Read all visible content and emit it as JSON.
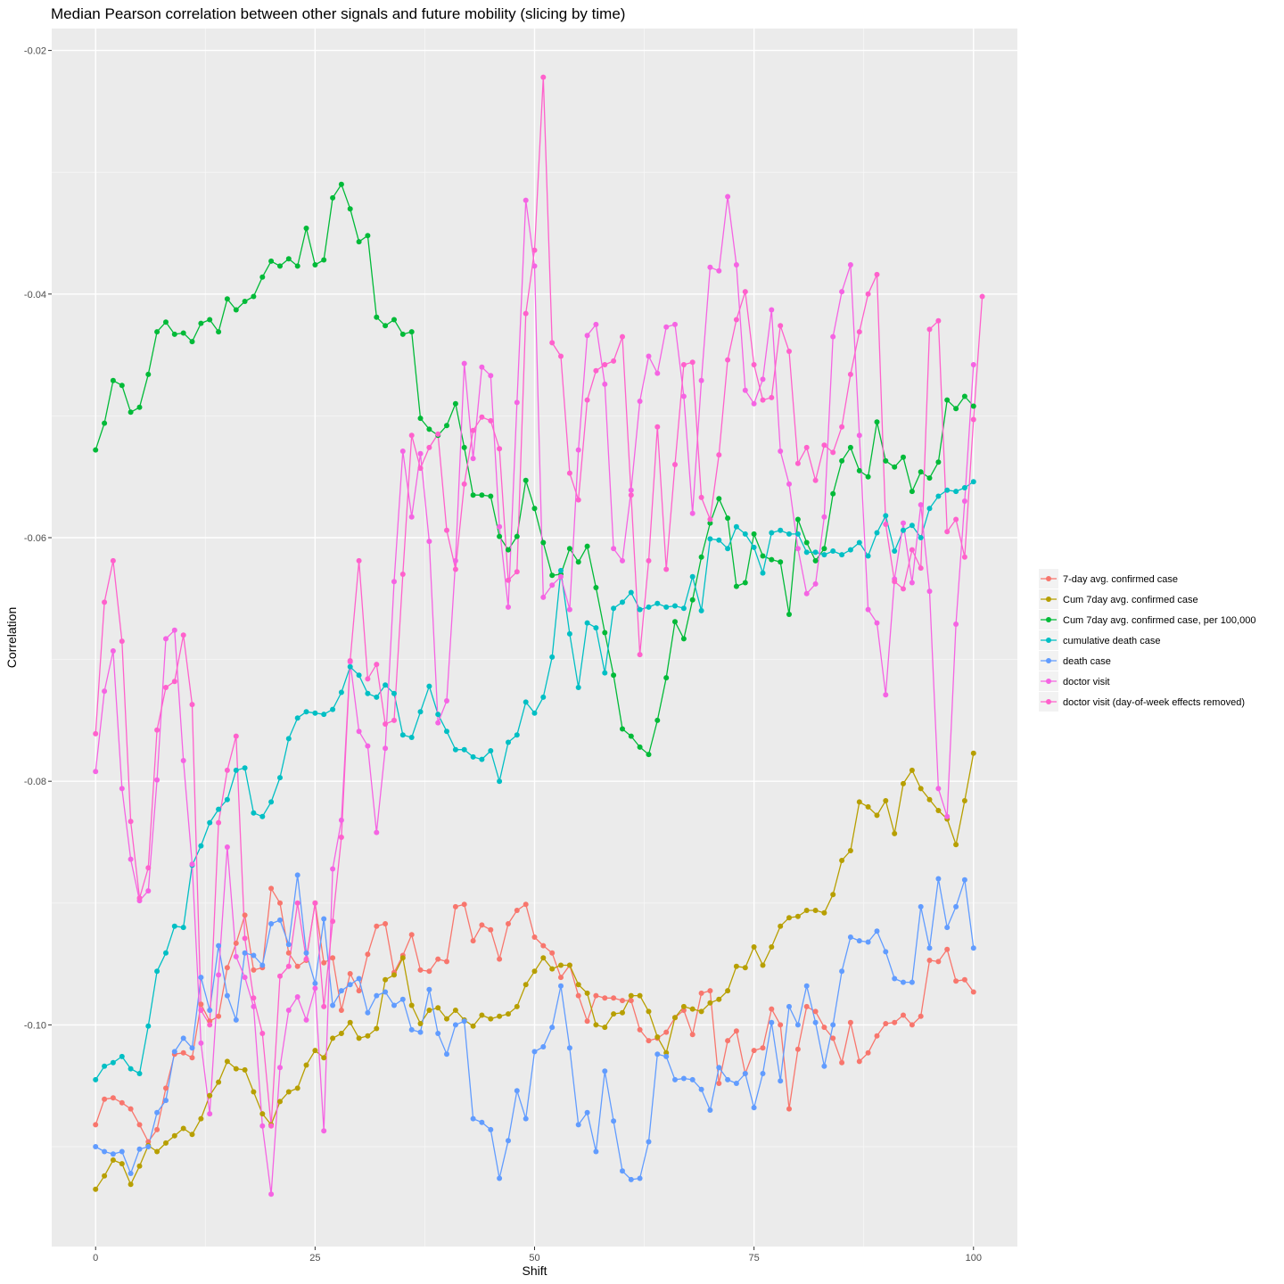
{
  "chart_data": {
    "type": "line",
    "title": "Median Pearson correlation between other signals and future mobility (slicing by time)",
    "xlabel": "Shift",
    "ylabel": "Correlation",
    "xlim": [
      -5,
      105
    ],
    "ylim": [
      -0.1182,
      -0.0182
    ],
    "x_ticks": [
      0,
      25,
      50,
      75,
      100
    ],
    "x_tick_labels": [
      "0",
      "25",
      "50",
      "75",
      "100"
    ],
    "y_ticks": [
      -0.02,
      -0.04,
      -0.06,
      -0.08,
      -0.1
    ],
    "y_tick_labels": [
      "-0.02",
      "-0.04",
      "-0.06",
      "-0.08",
      "-0.10"
    ],
    "grid": true,
    "legend_position": "right",
    "series": [
      {
        "name": "7-day avg. confirmed case",
        "color": "#F8766D",
        "values": [
          -0.1082,
          -0.1061,
          -0.106,
          -0.1064,
          -0.1069,
          -0.1082,
          -0.1096,
          -0.1086,
          -0.1052,
          -0.1024,
          -0.1023,
          -0.1027,
          -0.0983,
          -0.0997,
          -0.0993,
          -0.0953,
          -0.0933,
          -0.091,
          -0.0955,
          -0.0953,
          -0.0888,
          -0.09,
          -0.0941,
          -0.0952,
          -0.0947,
          -0.09,
          -0.0949,
          -0.0945,
          -0.0988,
          -0.0958,
          -0.0972,
          -0.0942,
          -0.0919,
          -0.0917,
          -0.0957,
          -0.0943,
          -0.0926,
          -0.0955,
          -0.0956,
          -0.0946,
          -0.0948,
          -0.0903,
          -0.0901,
          -0.0931,
          -0.0918,
          -0.0922,
          -0.0946,
          -0.0917,
          -0.0906,
          -0.0901,
          -0.0928,
          -0.0935,
          -0.0941,
          -0.0961,
          -0.0951,
          -0.0976,
          -0.0997,
          -0.0976,
          -0.0978,
          -0.0978,
          -0.098,
          -0.098,
          -0.1004,
          -0.1013,
          -0.1011,
          -0.1006,
          -0.0994,
          -0.0988,
          -0.1008,
          -0.0974,
          -0.0972,
          -0.1048,
          -0.1013,
          -0.1005,
          -0.104,
          -0.1021,
          -0.1019,
          -0.0987,
          -0.1,
          -0.1069,
          -0.102,
          -0.0985,
          -0.0989,
          -0.1002,
          -0.1011,
          -0.1031,
          -0.0998,
          -0.103,
          -0.1023,
          -0.1009,
          -0.0999,
          -0.0998,
          -0.0992,
          -0.1,
          -0.0993,
          -0.0947,
          -0.0948,
          -0.0938,
          -0.0964,
          -0.0963,
          -0.0973
        ]
      },
      {
        "name": "Cum 7day avg. confirmed case",
        "color": "#B79F00",
        "values": [
          -0.1135,
          -0.1124,
          -0.1111,
          -0.1114,
          -0.1131,
          -0.1116,
          -0.1099,
          -0.1104,
          -0.1097,
          -0.1091,
          -0.1085,
          -0.109,
          -0.1077,
          -0.1058,
          -0.1047,
          -0.103,
          -0.1036,
          -0.1037,
          -0.1055,
          -0.1073,
          -0.1082,
          -0.1063,
          -0.1055,
          -0.1052,
          -0.1033,
          -0.1021,
          -0.1027,
          -0.1011,
          -0.1007,
          -0.0998,
          -0.1011,
          -0.1009,
          -0.1003,
          -0.0963,
          -0.0959,
          -0.0945,
          -0.0984,
          -0.0999,
          -0.0988,
          -0.0986,
          -0.0995,
          -0.0988,
          -0.0996,
          -0.1001,
          -0.0992,
          -0.0995,
          -0.0993,
          -0.0991,
          -0.0985,
          -0.0967,
          -0.0956,
          -0.0945,
          -0.0954,
          -0.0951,
          -0.0951,
          -0.0967,
          -0.0974,
          -0.1,
          -0.1002,
          -0.0991,
          -0.099,
          -0.0976,
          -0.0976,
          -0.0989,
          -0.101,
          -0.1023,
          -0.0994,
          -0.0985,
          -0.0987,
          -0.0989,
          -0.0982,
          -0.0979,
          -0.0972,
          -0.0952,
          -0.0953,
          -0.0936,
          -0.0951,
          -0.0936,
          -0.0919,
          -0.0912,
          -0.0911,
          -0.0906,
          -0.0906,
          -0.0908,
          -0.0893,
          -0.0865,
          -0.0857,
          -0.0817,
          -0.0821,
          -0.0828,
          -0.0816,
          -0.0843,
          -0.0802,
          -0.0791,
          -0.0806,
          -0.0815,
          -0.0824,
          -0.0831,
          -0.0852,
          -0.0816,
          -0.0777
        ]
      },
      {
        "name": "Cum 7day avg. confirmed case, per 100,000",
        "color": "#00BA38",
        "values": [
          -0.0528,
          -0.0506,
          -0.0471,
          -0.0475,
          -0.0497,
          -0.0493,
          -0.0466,
          -0.0431,
          -0.0423,
          -0.0433,
          -0.0432,
          -0.0439,
          -0.0424,
          -0.0421,
          -0.0431,
          -0.0404,
          -0.0413,
          -0.0406,
          -0.0402,
          -0.0386,
          -0.0373,
          -0.0377,
          -0.0371,
          -0.0377,
          -0.0346,
          -0.0376,
          -0.0372,
          -0.0321,
          -0.031,
          -0.033,
          -0.0357,
          -0.0352,
          -0.0419,
          -0.0426,
          -0.0421,
          -0.0433,
          -0.0431,
          -0.0502,
          -0.0511,
          -0.0516,
          -0.0508,
          -0.049,
          -0.0526,
          -0.0565,
          -0.0565,
          -0.0566,
          -0.0599,
          -0.061,
          -0.0599,
          -0.0553,
          -0.0576,
          -0.0604,
          -0.0631,
          -0.063,
          -0.0609,
          -0.062,
          -0.0607,
          -0.0641,
          -0.0678,
          -0.0713,
          -0.0757,
          -0.0763,
          -0.0772,
          -0.0778,
          -0.075,
          -0.0715,
          -0.0669,
          -0.0683,
          -0.0651,
          -0.0616,
          -0.0588,
          -0.0568,
          -0.0584,
          -0.064,
          -0.0637,
          -0.0597,
          -0.0615,
          -0.0618,
          -0.062,
          -0.0663,
          -0.0585,
          -0.0604,
          -0.0619,
          -0.0609,
          -0.0564,
          -0.0537,
          -0.0526,
          -0.0545,
          -0.055,
          -0.0505,
          -0.0537,
          -0.0542,
          -0.0534,
          -0.0562,
          -0.0546,
          -0.0551,
          -0.0538,
          -0.0487,
          -0.0494,
          -0.0484,
          -0.0492
        ]
      },
      {
        "name": "cumulative death case",
        "color": "#00BFC4",
        "values": [
          -0.1045,
          -0.1034,
          -0.1031,
          -0.1026,
          -0.1036,
          -0.104,
          -0.1001,
          -0.0956,
          -0.0941,
          -0.0919,
          -0.092,
          -0.0869,
          -0.0853,
          -0.0834,
          -0.0823,
          -0.0815,
          -0.0791,
          -0.0789,
          -0.0826,
          -0.0829,
          -0.0817,
          -0.0797,
          -0.0765,
          -0.0748,
          -0.0743,
          -0.0744,
          -0.0745,
          -0.0741,
          -0.0727,
          -0.0706,
          -0.0713,
          -0.0728,
          -0.0731,
          -0.0721,
          -0.0728,
          -0.0762,
          -0.0764,
          -0.0743,
          -0.0722,
          -0.0745,
          -0.0759,
          -0.0774,
          -0.0774,
          -0.078,
          -0.0782,
          -0.0775,
          -0.08,
          -0.0768,
          -0.0762,
          -0.0735,
          -0.0744,
          -0.0731,
          -0.0698,
          -0.0627,
          -0.0679,
          -0.0723,
          -0.067,
          -0.0674,
          -0.0711,
          -0.0658,
          -0.0653,
          -0.0645,
          -0.0659,
          -0.0657,
          -0.0654,
          -0.0657,
          -0.0656,
          -0.0658,
          -0.0632,
          -0.066,
          -0.0601,
          -0.0602,
          -0.0609,
          -0.0591,
          -0.0597,
          -0.0608,
          -0.0629,
          -0.0596,
          -0.0594,
          -0.0597,
          -0.0597,
          -0.0612,
          -0.0612,
          -0.0614,
          -0.0611,
          -0.0614,
          -0.061,
          -0.0604,
          -0.0615,
          -0.0596,
          -0.0582,
          -0.0611,
          -0.0594,
          -0.059,
          -0.06,
          -0.0576,
          -0.0566,
          -0.0561,
          -0.0562,
          -0.0559,
          -0.0554
        ]
      },
      {
        "name": "death case",
        "color": "#619CFF",
        "values": [
          -0.11,
          -0.1104,
          -0.1106,
          -0.1104,
          -0.1122,
          -0.1102,
          -0.11,
          -0.1072,
          -0.1062,
          -0.1022,
          -0.1011,
          -0.1019,
          -0.0961,
          -0.0988,
          -0.0935,
          -0.0976,
          -0.0996,
          -0.0941,
          -0.0943,
          -0.0951,
          -0.0917,
          -0.0914,
          -0.0934,
          -0.0877,
          -0.0941,
          -0.0966,
          -0.0913,
          -0.0984,
          -0.0972,
          -0.0967,
          -0.0962,
          -0.099,
          -0.0976,
          -0.0973,
          -0.0984,
          -0.0979,
          -0.1004,
          -0.1006,
          -0.0971,
          -0.1007,
          -0.1024,
          -0.1,
          -0.0997,
          -0.1077,
          -0.108,
          -0.1086,
          -0.1126,
          -0.1095,
          -0.1054,
          -0.1077,
          -0.1022,
          -0.1018,
          -0.1002,
          -0.0968,
          -0.1019,
          -0.1082,
          -0.1072,
          -0.1104,
          -0.1038,
          -0.1079,
          -0.112,
          -0.1127,
          -0.1126,
          -0.1096,
          -0.1024,
          -0.1026,
          -0.1045,
          -0.1044,
          -0.1045,
          -0.1053,
          -0.107,
          -0.1035,
          -0.1045,
          -0.1048,
          -0.104,
          -0.1068,
          -0.104,
          -0.0998,
          -0.1046,
          -0.0985,
          -0.1,
          -0.0968,
          -0.0998,
          -0.1034,
          -0.1,
          -0.0956,
          -0.0928,
          -0.0931,
          -0.0932,
          -0.0923,
          -0.094,
          -0.0962,
          -0.0965,
          -0.0965,
          -0.0903,
          -0.0937,
          -0.088,
          -0.092,
          -0.0903,
          -0.0881,
          -0.0937
        ]
      },
      {
        "name": "doctor visit",
        "color": "#F564E3",
        "values": [
          -0.0792,
          -0.0726,
          -0.0693,
          -0.0806,
          -0.0864,
          -0.0898,
          -0.089,
          -0.0799,
          -0.0683,
          -0.0676,
          -0.0783,
          -0.0868,
          -0.1015,
          -0.1073,
          -0.0959,
          -0.0854,
          -0.0944,
          -0.0961,
          -0.0985,
          -0.1083,
          -0.1139,
          -0.1035,
          -0.0988,
          -0.0977,
          -0.0996,
          -0.097,
          -0.1087,
          -0.0872,
          -0.0832,
          -0.0702,
          -0.0759,
          -0.0771,
          -0.0842,
          -0.0773,
          -0.0636,
          -0.0529,
          -0.0583,
          -0.0531,
          -0.0603,
          -0.0752,
          -0.0734,
          -0.0619,
          -0.0457,
          -0.0535,
          -0.046,
          -0.0467,
          -0.0591,
          -0.0657,
          -0.0489,
          -0.0323,
          -0.0377,
          -0.0649,
          -0.0639,
          -0.0632,
          -0.0659,
          -0.0528,
          -0.0434,
          -0.0425,
          -0.0474,
          -0.0609,
          -0.0619,
          -0.0561,
          -0.0488,
          -0.0451,
          -0.0465,
          -0.0427,
          -0.0425,
          -0.0484,
          -0.058,
          -0.0471,
          -0.0378,
          -0.0381,
          -0.032,
          -0.0376,
          -0.0479,
          -0.049,
          -0.047,
          -0.0413,
          -0.0529,
          -0.0556,
          -0.0609,
          -0.0646,
          -0.0638,
          -0.0583,
          -0.0435,
          -0.0398,
          -0.0376,
          -0.0516,
          -0.0659,
          -0.067,
          -0.0729,
          -0.0634,
          -0.0588,
          -0.0637,
          -0.0573,
          -0.0644,
          -0.0806,
          -0.0829,
          -0.0671,
          -0.057,
          -0.0458
        ]
      },
      {
        "name": "doctor visit (day-of-week effects removed)",
        "color": "#FF61CC",
        "values": [
          -0.0761,
          -0.0653,
          -0.0619,
          -0.0685,
          -0.0833,
          -0.0896,
          -0.0871,
          -0.0758,
          -0.0723,
          -0.0718,
          -0.068,
          -0.0737,
          -0.0988,
          -0.1,
          -0.0834,
          -0.0791,
          -0.0763,
          -0.0929,
          -0.0978,
          -0.1007,
          -0.1083,
          -0.096,
          -0.0952,
          -0.09,
          -0.0946,
          -0.09,
          -0.0985,
          -0.0915,
          -0.0846,
          -0.0701,
          -0.0619,
          -0.0716,
          -0.0704,
          -0.0753,
          -0.075,
          -0.063,
          -0.0516,
          -0.0543,
          -0.0526,
          -0.0515,
          -0.0594,
          -0.0626,
          -0.0556,
          -0.0512,
          -0.0501,
          -0.0504,
          -0.0527,
          -0.0635,
          -0.0628,
          -0.0416,
          -0.0364,
          -0.0222,
          -0.044,
          -0.0451,
          -0.0547,
          -0.0569,
          -0.0487,
          -0.0463,
          -0.0458,
          -0.0455,
          -0.0435,
          -0.0565,
          -0.0696,
          -0.0619,
          -0.0509,
          -0.0626,
          -0.054,
          -0.0458,
          -0.0456,
          -0.0567,
          -0.0585,
          -0.0532,
          -0.0454,
          -0.0421,
          -0.0398,
          -0.0458,
          -0.0487,
          -0.0485,
          -0.0426,
          -0.0447,
          -0.0539,
          -0.0526,
          -0.0553,
          -0.0524,
          -0.053,
          -0.0509,
          -0.0466,
          -0.0431,
          -0.04,
          -0.0384,
          -0.0589,
          -0.0636,
          -0.0642,
          -0.061,
          -0.0625,
          -0.0429,
          -0.0422,
          -0.0595,
          -0.0585,
          -0.0616,
          -0.0503,
          -0.0402
        ]
      }
    ]
  }
}
